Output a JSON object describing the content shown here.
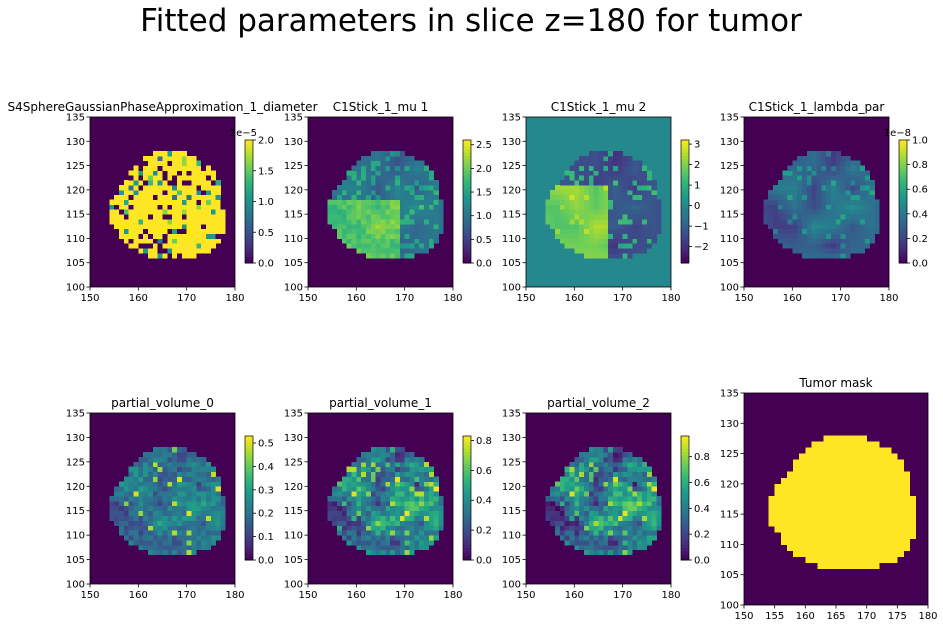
{
  "figure": {
    "suptitle": "Fitted parameters in slice z=180 for tumor"
  },
  "colors": {
    "background_dark": "#440154",
    "viridis_stops": [
      "#440154",
      "#482878",
      "#3e4989",
      "#31688e",
      "#26828e",
      "#1f9e89",
      "#35b779",
      "#6ece58",
      "#b5de2b",
      "#fde725"
    ]
  },
  "chart_data": [
    {
      "type": "heatmap",
      "title": "S4SphereGaussianPhaseApproximation_1_diameter",
      "xlim": [
        150,
        180
      ],
      "ylim": [
        100,
        135
      ],
      "xticks": [
        "150",
        "160",
        "170",
        "180"
      ],
      "yticks": [
        "100",
        "105",
        "110",
        "115",
        "120",
        "125",
        "130",
        "135"
      ],
      "colorbar": {
        "range": [
          0,
          2.0
        ],
        "ticks": [
          "0.0",
          "0.5",
          "1.0",
          "1.5",
          "2.0"
        ],
        "offset_label": "1e−5"
      },
      "pattern": "saturated",
      "background_value": 0.0
    },
    {
      "type": "heatmap",
      "title": "C1Stick_1_mu 1",
      "xlim": [
        150,
        180
      ],
      "ylim": [
        100,
        135
      ],
      "xticks": [
        "150",
        "160",
        "170",
        "180"
      ],
      "yticks": [
        "100",
        "105",
        "110",
        "115",
        "120",
        "125",
        "130",
        "135"
      ],
      "colorbar": {
        "range": [
          0,
          2.6
        ],
        "ticks": [
          "0.0",
          "0.5",
          "1.0",
          "1.5",
          "2.0",
          "2.5"
        ],
        "offset_label": ""
      },
      "pattern": "mu1",
      "background_value": 0.0
    },
    {
      "type": "heatmap",
      "title": "C1Stick_1_mu 2",
      "xlim": [
        150,
        180
      ],
      "ylim": [
        100,
        135
      ],
      "xticks": [
        "150",
        "160",
        "170",
        "180"
      ],
      "yticks": [
        "100",
        "105",
        "110",
        "115",
        "120",
        "125",
        "130",
        "135"
      ],
      "colorbar": {
        "range": [
          -2.8,
          3.2
        ],
        "ticks": [
          "−2",
          "−1",
          "0",
          "1",
          "2",
          "3"
        ],
        "offset_label": ""
      },
      "pattern": "mu2",
      "background_value": 0.0
    },
    {
      "type": "heatmap",
      "title": "C1Stick_1_lambda_par",
      "xlim": [
        150,
        180
      ],
      "ylim": [
        100,
        135
      ],
      "xticks": [
        "150",
        "160",
        "170",
        "180"
      ],
      "yticks": [
        "100",
        "105",
        "110",
        "115",
        "120",
        "125",
        "130",
        "135"
      ],
      "colorbar": {
        "range": [
          0,
          1.0
        ],
        "ticks": [
          "0.0",
          "0.2",
          "0.4",
          "0.6",
          "0.8",
          "1.0"
        ],
        "offset_label": "1e−8"
      },
      "pattern": "lambda",
      "background_value": 0.0
    },
    {
      "type": "heatmap",
      "title": "partial_volume_0",
      "xlim": [
        150,
        180
      ],
      "ylim": [
        100,
        135
      ],
      "xticks": [
        "150",
        "160",
        "170",
        "180"
      ],
      "yticks": [
        "100",
        "105",
        "110",
        "115",
        "120",
        "125",
        "130",
        "135"
      ],
      "colorbar": {
        "range": [
          0,
          0.53
        ],
        "ticks": [
          "0.0",
          "0.1",
          "0.2",
          "0.3",
          "0.4",
          "0.5"
        ],
        "offset_label": ""
      },
      "pattern": "pv0",
      "background_value": 0.0
    },
    {
      "type": "heatmap",
      "title": "partial_volume_1",
      "xlim": [
        150,
        180
      ],
      "ylim": [
        100,
        135
      ],
      "xticks": [
        "150",
        "160",
        "170",
        "180"
      ],
      "yticks": [
        "100",
        "105",
        "110",
        "115",
        "120",
        "125",
        "130",
        "135"
      ],
      "colorbar": {
        "range": [
          0,
          0.83
        ],
        "ticks": [
          "0.0",
          "0.2",
          "0.4",
          "0.6",
          "0.8"
        ],
        "offset_label": ""
      },
      "pattern": "pv1",
      "background_value": 0.0
    },
    {
      "type": "heatmap",
      "title": "partial_volume_2",
      "xlim": [
        150,
        180
      ],
      "ylim": [
        100,
        135
      ],
      "xticks": [
        "150",
        "160",
        "170",
        "180"
      ],
      "yticks": [
        "100",
        "105",
        "110",
        "115",
        "120",
        "125",
        "130",
        "135"
      ],
      "colorbar": {
        "range": [
          0,
          0.96
        ],
        "ticks": [
          "0.0",
          "0.2",
          "0.4",
          "0.6",
          "0.8"
        ],
        "offset_label": ""
      },
      "pattern": "pv2",
      "background_value": 0.0
    },
    {
      "type": "heatmap",
      "title": "Tumor mask",
      "xlim": [
        150,
        180
      ],
      "ylim": [
        100,
        135
      ],
      "xticks": [
        "150",
        "155",
        "160",
        "165",
        "170",
        "175",
        "180"
      ],
      "yticks": [
        "100",
        "105",
        "110",
        "115",
        "120",
        "125",
        "130",
        "135"
      ],
      "colorbar": null,
      "pattern": "mask",
      "background_value": 0.0
    }
  ]
}
